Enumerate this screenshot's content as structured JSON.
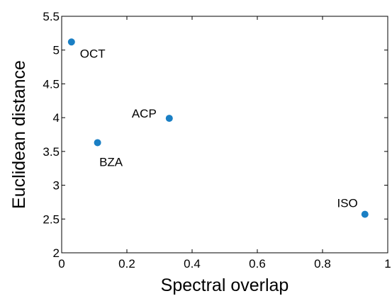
{
  "chart_data": {
    "type": "scatter",
    "title": "",
    "xlabel": "Spectral overlap",
    "ylabel": "Euclidean distance",
    "xlim": [
      0,
      1
    ],
    "ylim": [
      2,
      5.5
    ],
    "xticks": [
      0,
      0.2,
      0.4,
      0.6,
      0.8,
      1
    ],
    "xtick_labels": [
      "0",
      "0.2",
      "0.4",
      "0.6",
      "0.8",
      "1"
    ],
    "yticks": [
      2,
      2.5,
      3,
      3.5,
      4,
      4.5,
      5,
      5.5
    ],
    "ytick_labels": [
      "2",
      "2.5",
      "3",
      "3.5",
      "4",
      "4.5",
      "5",
      "5.5"
    ],
    "grid": false,
    "point_color": "#1a7fc4",
    "points": [
      {
        "label": "OCT",
        "x": 0.03,
        "y": 5.12,
        "label_pos": "below-right"
      },
      {
        "label": "ACP",
        "x": 0.33,
        "y": 3.99,
        "label_pos": "left"
      },
      {
        "label": "BZA",
        "x": 0.11,
        "y": 3.63,
        "label_pos": "below"
      },
      {
        "label": "ISO",
        "x": 0.93,
        "y": 2.57,
        "label_pos": "above-left"
      }
    ]
  }
}
